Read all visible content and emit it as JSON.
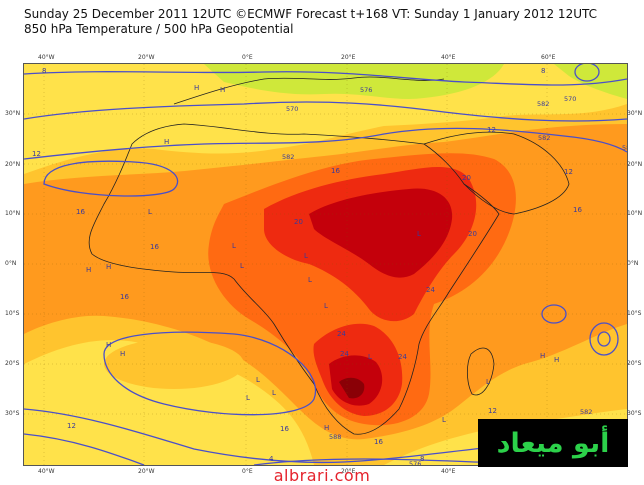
{
  "header": {
    "line1": "Sunday 25 December 2011 12UTC ©ECMWF Forecast t+168 VT: Sunday 1 January 2012 12UTC",
    "line2": "850 hPa Temperature / 500 hPa Geopotential"
  },
  "axes": {
    "lon_labels": [
      "40°W",
      "20°W",
      "0°E",
      "20°E",
      "40°E",
      "60°E"
    ],
    "lat_labels_left": [
      "30°N",
      "20°N",
      "10°N",
      "0°N",
      "10°S",
      "20°S",
      "30°S"
    ],
    "lat_labels_right": [
      "30°N",
      "20°N",
      "10°N",
      "0°N",
      "10°S",
      "20°S",
      "30°S"
    ]
  },
  "map": {
    "temperature_labels": [
      "8",
      "12",
      "16",
      "16",
      "16",
      "16",
      "12",
      "16",
      "20",
      "20",
      "20",
      "24",
      "24",
      "24",
      "24",
      "16",
      "12",
      "12",
      "8",
      "4",
      "8",
      "12",
      "16"
    ],
    "geopotential_labels": [
      "576",
      "582",
      "570",
      "582",
      "588",
      "582",
      "570",
      "582",
      "588",
      "576"
    ],
    "pressure_markers": [
      "H",
      "H",
      "H",
      "H",
      "H",
      "H",
      "H",
      "L",
      "L",
      "L",
      "L",
      "L",
      "L",
      "L",
      "L",
      "L",
      "L",
      "H",
      "H",
      "H",
      "L",
      "L",
      "L"
    ],
    "colors": {
      "cold": "#cfe83a",
      "cool": "#ffe24a",
      "mild": "#ffc42e",
      "warm": "#ff9a1e",
      "hot": "#ff6a12",
      "hotter": "#ee2a10",
      "hottest": "#c4000b",
      "extreme": "#8a0006",
      "contour": "#4a4fc9",
      "coast": "#222222"
    }
  },
  "watermark": {
    "logo_text": "أبو ميعاد",
    "site": "albrari.com"
  }
}
